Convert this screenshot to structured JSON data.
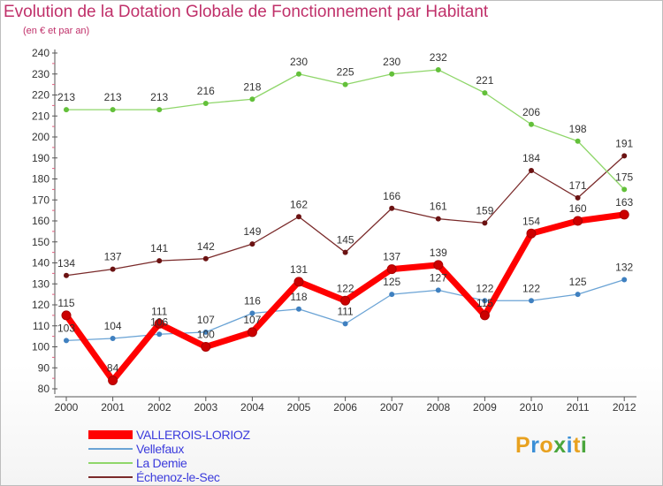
{
  "title": "Evolution de la Dotation Globale de Fonctionnement par Habitant",
  "subtitle": "(en € et par an)",
  "logo": {
    "letters": [
      "P",
      "r",
      "o",
      "x",
      "i",
      "t",
      "i"
    ],
    "colors": [
      "#e8a11f",
      "#3b8fd6",
      "#e8a11f",
      "#4aa63c",
      "#3b8fd6",
      "#e8a11f",
      "#4aa63c"
    ]
  },
  "chart_data": {
    "type": "line",
    "title": "Evolution de la Dotation Globale de Fonctionnement par Habitant",
    "subtitle": "(en € et par an)",
    "x": [
      "2000",
      "2001",
      "2002",
      "2003",
      "2004",
      "2005",
      "2006",
      "2007",
      "2008",
      "2009",
      "2010",
      "2011",
      "2012"
    ],
    "ylim": [
      80,
      240
    ],
    "yticks": [
      80,
      90,
      100,
      110,
      120,
      130,
      140,
      150,
      160,
      170,
      180,
      190,
      200,
      210,
      220,
      230,
      240
    ],
    "grid": false,
    "legend_position": "bottom-left",
    "series": [
      {
        "name": "VALLEROIS-LORIOZ",
        "color": "#ff0000",
        "marker": "#cc0000",
        "values": [
          115,
          84,
          111,
          100,
          107,
          131,
          122,
          137,
          139,
          115,
          154,
          160,
          163
        ]
      },
      {
        "name": "Vellefaux",
        "color": "#6aa3d5",
        "marker": "#3f80c0",
        "values": [
          103,
          104,
          106,
          107,
          116,
          118,
          111,
          125,
          127,
          122,
          122,
          125,
          132
        ]
      },
      {
        "name": "La Demie",
        "color": "#8fd66a",
        "marker": "#63c03a",
        "values": [
          213,
          213,
          213,
          216,
          218,
          230,
          225,
          230,
          232,
          221,
          206,
          198,
          175
        ]
      },
      {
        "name": "Échenoz-le-Sec",
        "color": "#7a2a2a",
        "marker": "#6b1212",
        "values": [
          134,
          137,
          141,
          142,
          149,
          162,
          145,
          166,
          161,
          159,
          184,
          171,
          191
        ]
      }
    ]
  }
}
